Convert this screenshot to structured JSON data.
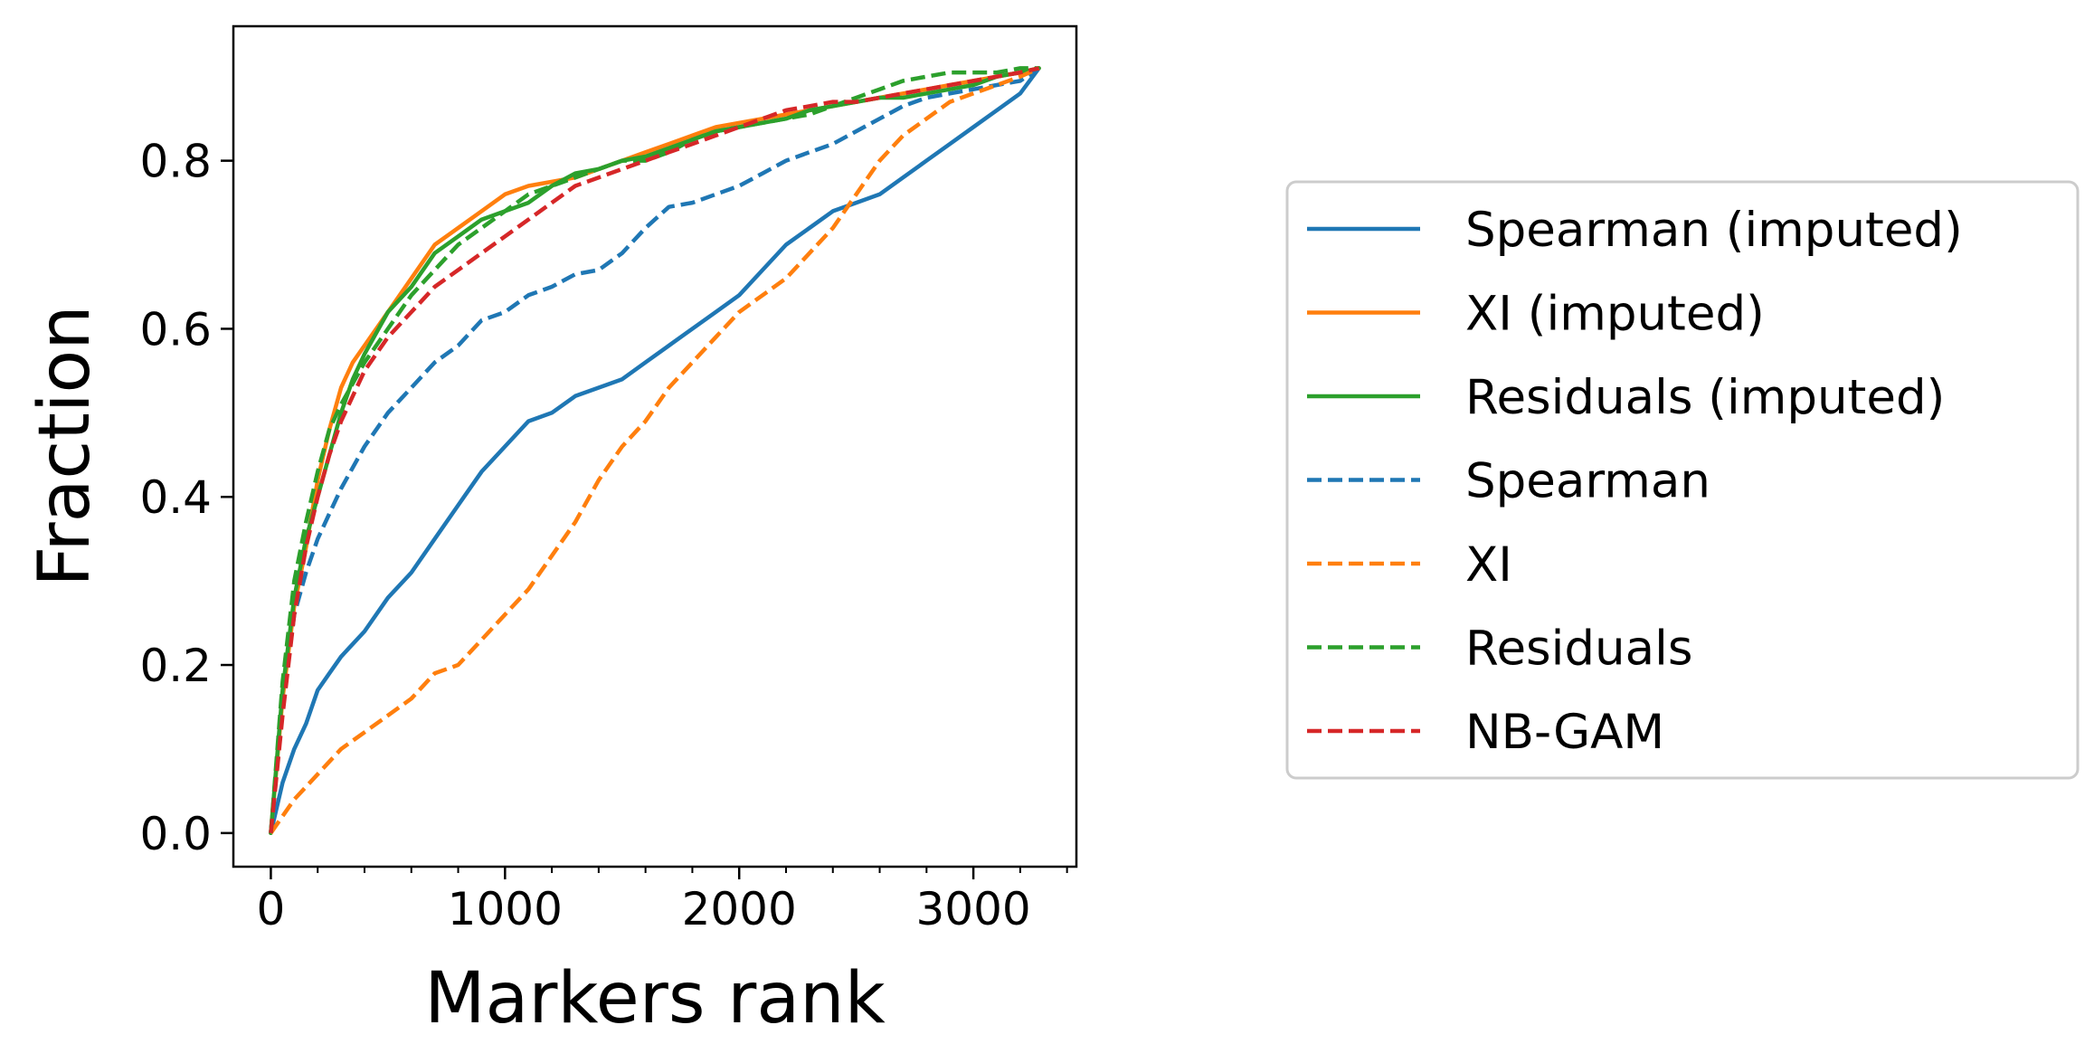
{
  "chart_data": {
    "type": "line",
    "xlabel": "Markers rank",
    "ylabel": "Fraction",
    "xlim": [
      -160,
      3440
    ],
    "ylim": [
      -0.04,
      0.96
    ],
    "xticks": [
      0,
      1000,
      2000,
      3000
    ],
    "xtick_labels": [
      "0",
      "1000",
      "2000",
      "3000"
    ],
    "yticks": [
      0.0,
      0.2,
      0.4,
      0.6,
      0.8
    ],
    "ytick_labels": [
      "0.0",
      "0.2",
      "0.4",
      "0.6",
      "0.8"
    ],
    "x_minor_step": 200,
    "grid": false,
    "legend_position": "outside-right",
    "series": [
      {
        "name": "Spearman (imputed)",
        "color": "#1f77b4",
        "style": "solid",
        "x": [
          0,
          50,
          100,
          150,
          200,
          250,
          300,
          400,
          500,
          600,
          700,
          800,
          900,
          1000,
          1100,
          1200,
          1300,
          1400,
          1500,
          1600,
          1700,
          1800,
          1900,
          2000,
          2100,
          2200,
          2300,
          2400,
          2500,
          2600,
          2700,
          2800,
          2900,
          3000,
          3100,
          3200,
          3280
        ],
        "y": [
          0.0,
          0.06,
          0.1,
          0.13,
          0.17,
          0.19,
          0.21,
          0.24,
          0.28,
          0.31,
          0.35,
          0.39,
          0.43,
          0.46,
          0.49,
          0.5,
          0.52,
          0.53,
          0.54,
          0.56,
          0.58,
          0.6,
          0.62,
          0.64,
          0.67,
          0.7,
          0.72,
          0.74,
          0.75,
          0.76,
          0.78,
          0.8,
          0.82,
          0.84,
          0.86,
          0.88,
          0.91
        ]
      },
      {
        "name": "XI (imputed)",
        "color": "#ff7f0e",
        "style": "solid",
        "x": [
          0,
          50,
          100,
          150,
          200,
          250,
          300,
          350,
          400,
          500,
          600,
          700,
          800,
          900,
          1000,
          1100,
          1200,
          1300,
          1400,
          1500,
          1600,
          1700,
          1800,
          1900,
          2000,
          2100,
          2200,
          2300,
          2400,
          2500,
          2600,
          2700,
          2800,
          2900,
          3000,
          3100,
          3200,
          3280
        ],
        "y": [
          0.0,
          0.16,
          0.27,
          0.34,
          0.42,
          0.48,
          0.53,
          0.56,
          0.58,
          0.62,
          0.66,
          0.7,
          0.72,
          0.74,
          0.76,
          0.77,
          0.775,
          0.78,
          0.79,
          0.8,
          0.81,
          0.82,
          0.83,
          0.84,
          0.845,
          0.85,
          0.855,
          0.86,
          0.865,
          0.87,
          0.875,
          0.88,
          0.885,
          0.89,
          0.895,
          0.9,
          0.905,
          0.91
        ]
      },
      {
        "name": "Residuals (imputed)",
        "color": "#2ca02c",
        "style": "solid",
        "x": [
          0,
          50,
          100,
          150,
          200,
          250,
          300,
          350,
          400,
          500,
          600,
          700,
          800,
          900,
          1000,
          1100,
          1200,
          1300,
          1400,
          1500,
          1600,
          1700,
          1800,
          1900,
          2000,
          2100,
          2200,
          2300,
          2400,
          2500,
          2600,
          2700,
          2800,
          2900,
          3000,
          3100,
          3200,
          3280
        ],
        "y": [
          0.0,
          0.17,
          0.28,
          0.35,
          0.4,
          0.45,
          0.5,
          0.54,
          0.57,
          0.62,
          0.65,
          0.69,
          0.71,
          0.73,
          0.74,
          0.75,
          0.77,
          0.785,
          0.79,
          0.8,
          0.805,
          0.815,
          0.825,
          0.835,
          0.84,
          0.845,
          0.85,
          0.86,
          0.865,
          0.87,
          0.875,
          0.875,
          0.88,
          0.885,
          0.89,
          0.9,
          0.905,
          0.91
        ]
      },
      {
        "name": "Spearman",
        "color": "#1f77b4",
        "style": "dashed",
        "x": [
          0,
          50,
          100,
          150,
          200,
          250,
          300,
          400,
          500,
          600,
          700,
          800,
          900,
          1000,
          1100,
          1200,
          1300,
          1400,
          1500,
          1600,
          1700,
          1800,
          1900,
          2000,
          2100,
          2200,
          2300,
          2400,
          2500,
          2600,
          2700,
          2800,
          2900,
          3000,
          3100,
          3200,
          3280
        ],
        "y": [
          0.0,
          0.15,
          0.26,
          0.31,
          0.35,
          0.38,
          0.41,
          0.46,
          0.5,
          0.53,
          0.56,
          0.58,
          0.61,
          0.62,
          0.64,
          0.65,
          0.665,
          0.67,
          0.69,
          0.72,
          0.745,
          0.75,
          0.76,
          0.77,
          0.785,
          0.8,
          0.81,
          0.82,
          0.835,
          0.85,
          0.865,
          0.875,
          0.88,
          0.885,
          0.89,
          0.895,
          0.91
        ]
      },
      {
        "name": "XI",
        "color": "#ff7f0e",
        "style": "dashed",
        "x": [
          0,
          100,
          200,
          300,
          400,
          500,
          600,
          700,
          800,
          900,
          1000,
          1100,
          1200,
          1300,
          1400,
          1500,
          1600,
          1700,
          1800,
          1900,
          2000,
          2100,
          2200,
          2300,
          2400,
          2500,
          2600,
          2700,
          2800,
          2900,
          3000,
          3100,
          3200,
          3280
        ],
        "y": [
          0.0,
          0.04,
          0.07,
          0.1,
          0.12,
          0.14,
          0.16,
          0.19,
          0.2,
          0.23,
          0.26,
          0.29,
          0.33,
          0.37,
          0.42,
          0.46,
          0.49,
          0.53,
          0.56,
          0.59,
          0.62,
          0.64,
          0.66,
          0.69,
          0.72,
          0.76,
          0.8,
          0.83,
          0.85,
          0.87,
          0.88,
          0.89,
          0.9,
          0.91
        ]
      },
      {
        "name": "Residuals",
        "color": "#2ca02c",
        "style": "dashed",
        "x": [
          0,
          50,
          100,
          150,
          200,
          250,
          300,
          400,
          500,
          600,
          700,
          800,
          900,
          1000,
          1100,
          1200,
          1300,
          1400,
          1500,
          1600,
          1700,
          1800,
          1900,
          2000,
          2100,
          2200,
          2300,
          2400,
          2500,
          2600,
          2700,
          2800,
          2900,
          3000,
          3100,
          3200,
          3280
        ],
        "y": [
          0.0,
          0.18,
          0.3,
          0.37,
          0.43,
          0.48,
          0.51,
          0.56,
          0.6,
          0.64,
          0.67,
          0.7,
          0.72,
          0.74,
          0.76,
          0.77,
          0.78,
          0.79,
          0.8,
          0.8,
          0.81,
          0.825,
          0.835,
          0.84,
          0.845,
          0.85,
          0.855,
          0.865,
          0.875,
          0.885,
          0.895,
          0.9,
          0.905,
          0.905,
          0.905,
          0.91,
          0.91
        ]
      },
      {
        "name": "NB-GAM",
        "color": "#d62728",
        "style": "dashed",
        "x": [
          0,
          50,
          100,
          150,
          200,
          250,
          300,
          400,
          500,
          600,
          700,
          800,
          900,
          1000,
          1100,
          1200,
          1300,
          1400,
          1500,
          1600,
          1700,
          1800,
          1900,
          2000,
          2100,
          2200,
          2300,
          2400,
          2500,
          2600,
          2700,
          2800,
          2900,
          3000,
          3100,
          3200,
          3280
        ],
        "y": [
          0.0,
          0.14,
          0.26,
          0.34,
          0.4,
          0.45,
          0.49,
          0.55,
          0.59,
          0.62,
          0.65,
          0.67,
          0.69,
          0.71,
          0.73,
          0.75,
          0.77,
          0.78,
          0.79,
          0.8,
          0.81,
          0.82,
          0.83,
          0.84,
          0.85,
          0.86,
          0.865,
          0.87,
          0.87,
          0.875,
          0.88,
          0.885,
          0.89,
          0.895,
          0.9,
          0.905,
          0.91
        ]
      }
    ]
  }
}
